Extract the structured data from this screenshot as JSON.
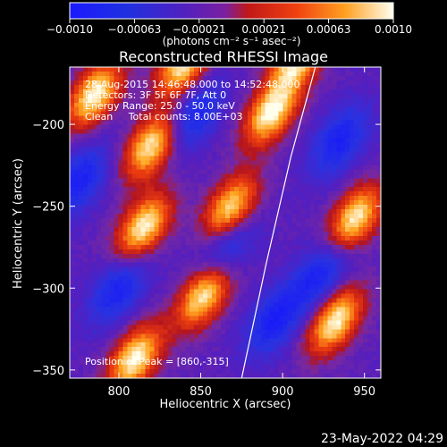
{
  "chart_data": {
    "type": "heatmap",
    "title": "Reconstructed RHESSI Image",
    "xlabel": "Heliocentric X (arcsec)",
    "ylabel": "Heliocentric Y (arcsec)",
    "xlim": [
      770,
      960
    ],
    "ylim": [
      -355,
      -165
    ],
    "x_ticks": [
      800,
      850,
      900,
      950
    ],
    "y_ticks": [
      -200,
      -250,
      -300,
      -350
    ],
    "colorbar": {
      "range": [
        -0.001,
        0.001
      ],
      "tick_labels": [
        "−0.0010",
        "−0.00063",
        "−0.00021",
        "0.00021",
        "0.00063",
        "0.0010"
      ],
      "unit_label": "(photons cm⁻² s⁻¹ asec⁻²)"
    },
    "annotations": {
      "time_range": "28-Aug-2015 14:46:48.000 to 14:52:48.000",
      "detectors": "Detectors: 3F 5F 6F 7F, Att 0",
      "energy": "Energy Range: 25.0 - 50.0 keV",
      "algorithm": "Clean     Total counts: 8.00E+03",
      "peak": "Position of Peak = [860,-315]"
    },
    "limb_curve": [
      [
        920,
        -165
      ],
      [
        905,
        -220
      ],
      [
        890,
        -285
      ],
      [
        875,
        -355
      ]
    ],
    "bright_sources": [
      [
        785,
        -182
      ],
      [
        815,
        -263
      ],
      [
        852,
        -304
      ],
      [
        868,
        -252
      ],
      [
        893,
        -193
      ],
      [
        910,
        -158
      ],
      [
        932,
        -320
      ],
      [
        944,
        -258
      ],
      [
        810,
        -343
      ],
      [
        840,
        -163
      ],
      [
        820,
        -213
      ]
    ],
    "dark_sources": [
      [
        865,
        -275
      ],
      [
        800,
        -300
      ],
      [
        935,
        -210
      ],
      [
        925,
        -290
      ],
      [
        895,
        -320
      ],
      [
        845,
        -195
      ],
      [
        775,
        -235
      ]
    ]
  },
  "footer": {
    "date": "23-May-2022 04:29"
  }
}
